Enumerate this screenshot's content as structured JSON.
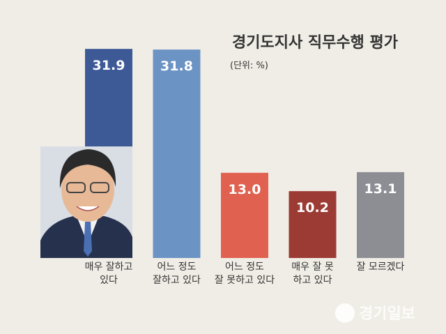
{
  "chart_data": {
    "type": "bar",
    "title": "경기도지사 직무수행 평가",
    "subtitle": "(단위: %)",
    "categories": [
      "매우 잘하고\n있다",
      "어느 정도\n잘하고 있다",
      "어느 정도\n잘 못하고 있다",
      "매우 잘 못\n하고 있다",
      "잘 모르겠다"
    ],
    "values": [
      31.9,
      31.8,
      13,
      10.2,
      13.1
    ],
    "value_labels": [
      "31.9",
      "31.8",
      "13.0",
      "10.2",
      "13.1"
    ],
    "colors": [
      "#3d5a97",
      "#6b93c4",
      "#e06150",
      "#9c3b34",
      "#8d8e93"
    ]
  },
  "watermark": "경기일보"
}
